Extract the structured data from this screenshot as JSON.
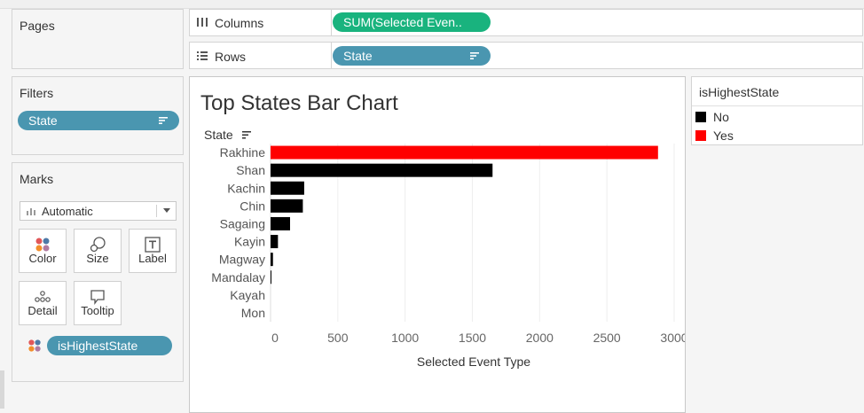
{
  "pages": {
    "title": "Pages"
  },
  "filters": {
    "title": "Filters",
    "pill": "State"
  },
  "marks": {
    "title": "Marks",
    "type_select": "Automatic",
    "buttons": [
      {
        "label": "Color",
        "icon": "color-dots-icon"
      },
      {
        "label": "Size",
        "icon": "size-circles-icon"
      },
      {
        "label": "Label",
        "icon": "label-t-icon"
      },
      {
        "label": "Detail",
        "icon": "detail-dots-icon"
      },
      {
        "label": "Tooltip",
        "icon": "tooltip-bubble-icon"
      }
    ],
    "color_pill": "isHighestState"
  },
  "shelves": {
    "columns_label": "Columns",
    "columns_pill": "SUM(Selected Even..",
    "rows_label": "Rows",
    "rows_pill": "State"
  },
  "sheet": {
    "title": "Top States Bar Chart",
    "row_header": "State"
  },
  "legend": {
    "title": "isHighestState",
    "items": [
      {
        "label": "No",
        "color": "#000000"
      },
      {
        "label": "Yes",
        "color": "#ff0000"
      }
    ]
  },
  "chart_data": {
    "type": "bar",
    "orientation": "horizontal",
    "title": "Top States Bar Chart",
    "xlabel": "Selected Event Type",
    "ylabel": "State",
    "categories": [
      "Rakhine",
      "Shan",
      "Kachin",
      "Chin",
      "Sagaing",
      "Kayin",
      "Magway",
      "Mandalay",
      "Kayah",
      "Mon"
    ],
    "values": [
      2880,
      1650,
      250,
      240,
      145,
      55,
      18,
      6,
      0,
      0
    ],
    "highlight": [
      true,
      false,
      false,
      false,
      false,
      false,
      false,
      false,
      false,
      false
    ],
    "colors": {
      "highest": "#ff0000",
      "other": "#000000"
    },
    "xlim": [
      0,
      3000
    ],
    "xticks": [
      0,
      500,
      1000,
      1500,
      2000,
      2500,
      3000
    ],
    "grid": "vertical-lines"
  }
}
